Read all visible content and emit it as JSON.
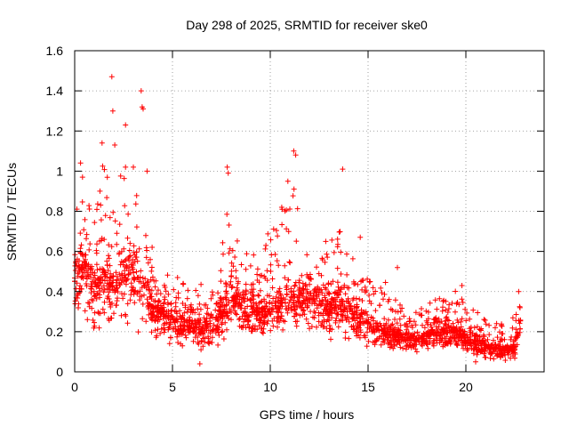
{
  "chart_data": {
    "type": "scatter",
    "title": "Day 298 of 2025, SRMTID for receiver ske0",
    "xlabel": "GPS time / hours",
    "ylabel": "SRMTID / TECUs",
    "xlim": [
      0,
      24
    ],
    "ylim": [
      0,
      1.6
    ],
    "x_ticks": [
      0,
      5,
      10,
      15,
      20
    ],
    "y_ticks": [
      0,
      0.2,
      0.4,
      0.6,
      0.8,
      1,
      1.2,
      1.4,
      1.6
    ],
    "x_tick_labels": [
      "0",
      "5",
      "10",
      "15",
      "20"
    ],
    "y_tick_labels": [
      "0",
      "0.2",
      "0.4",
      "0.6",
      "0.8",
      "1",
      "1.2",
      "1.4",
      "1.6"
    ],
    "grid": true,
    "marker": "+",
    "color": "#ff0000",
    "data_x_range": [
      0,
      22.8
    ],
    "envelope": {
      "hours": [
        0,
        0.5,
        1,
        1.5,
        2,
        2.5,
        3,
        3.5,
        4,
        4.5,
        5,
        5.5,
        6,
        6.5,
        7,
        7.5,
        8,
        8.5,
        9,
        9.5,
        10,
        10.5,
        11,
        11.5,
        12,
        12.5,
        13,
        13.5,
        14,
        14.5,
        15,
        15.5,
        16,
        16.5,
        17,
        17.5,
        18,
        18.5,
        19,
        19.5,
        20,
        20.5,
        21,
        21.5,
        22,
        22.5,
        22.8
      ],
      "median": [
        0.45,
        0.5,
        0.4,
        0.45,
        0.4,
        0.45,
        0.45,
        0.4,
        0.3,
        0.28,
        0.25,
        0.22,
        0.22,
        0.2,
        0.23,
        0.28,
        0.38,
        0.3,
        0.3,
        0.28,
        0.3,
        0.32,
        0.35,
        0.38,
        0.35,
        0.33,
        0.3,
        0.35,
        0.3,
        0.25,
        0.25,
        0.2,
        0.18,
        0.18,
        0.15,
        0.16,
        0.17,
        0.2,
        0.18,
        0.2,
        0.16,
        0.14,
        0.12,
        0.11,
        0.1,
        0.12,
        0.25
      ],
      "low": [
        0.2,
        0.25,
        0.15,
        0.2,
        0.2,
        0.2,
        0.15,
        0.15,
        0.12,
        0.12,
        0.1,
        0.08,
        0.08,
        0.06,
        0.08,
        0.12,
        0.2,
        0.15,
        0.15,
        0.14,
        0.15,
        0.15,
        0.18,
        0.2,
        0.18,
        0.15,
        0.15,
        0.17,
        0.15,
        0.12,
        0.12,
        0.1,
        0.08,
        0.08,
        0.08,
        0.08,
        0.08,
        0.1,
        0.08,
        0.1,
        0.08,
        0.06,
        0.05,
        0.04,
        0.04,
        0.05,
        0.12
      ],
      "high": [
        0.8,
        0.95,
        0.75,
        1.1,
        1.05,
        1.0,
        0.9,
        0.85,
        0.6,
        0.55,
        0.5,
        0.45,
        0.4,
        0.45,
        0.45,
        0.6,
        0.95,
        0.6,
        0.6,
        0.55,
        0.75,
        0.95,
        1.05,
        0.75,
        0.55,
        0.55,
        0.75,
        0.8,
        0.65,
        0.5,
        0.5,
        0.45,
        0.45,
        0.35,
        0.3,
        0.3,
        0.35,
        0.38,
        0.35,
        0.42,
        0.35,
        0.3,
        0.28,
        0.25,
        0.25,
        0.3,
        0.4
      ]
    },
    "notable_points": [
      {
        "x": 0.3,
        "y": 1.04
      },
      {
        "x": 0.4,
        "y": 0.97
      },
      {
        "x": 1.4,
        "y": 1.14
      },
      {
        "x": 1.9,
        "y": 1.47
      },
      {
        "x": 1.95,
        "y": 1.3
      },
      {
        "x": 2.05,
        "y": 1.13
      },
      {
        "x": 2.6,
        "y": 1.23
      },
      {
        "x": 2.6,
        "y": 1.02
      },
      {
        "x": 3.0,
        "y": 1.02
      },
      {
        "x": 3.4,
        "y": 1.4
      },
      {
        "x": 3.45,
        "y": 1.32
      },
      {
        "x": 3.5,
        "y": 1.31
      },
      {
        "x": 3.7,
        "y": 1.0
      },
      {
        "x": 7.8,
        "y": 1.02
      },
      {
        "x": 7.85,
        "y": 0.99
      },
      {
        "x": 10.9,
        "y": 0.95
      },
      {
        "x": 11.2,
        "y": 1.1
      },
      {
        "x": 11.3,
        "y": 1.08
      },
      {
        "x": 13.7,
        "y": 1.01
      },
      {
        "x": 14.6,
        "y": 0.67
      },
      {
        "x": 16.5,
        "y": 0.52
      },
      {
        "x": 19.8,
        "y": 0.43
      },
      {
        "x": 21.5,
        "y": 0.22
      },
      {
        "x": 22.7,
        "y": 0.4
      },
      {
        "x": 20.5,
        "y": 0.05
      },
      {
        "x": 6.4,
        "y": 0.04
      }
    ],
    "point_count": 2400,
    "seed": 298
  }
}
